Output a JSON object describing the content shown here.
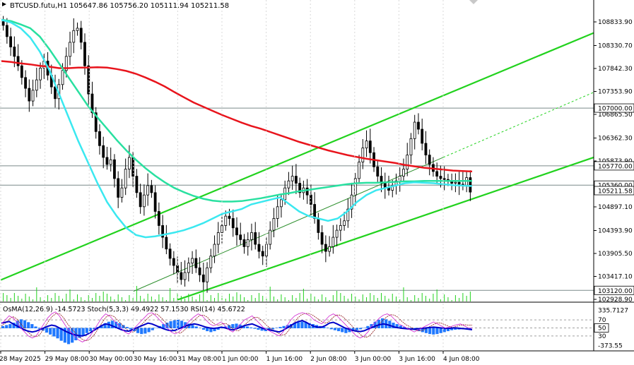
{
  "window": {
    "symbol_line": "BTCUSD.futu,H1  105647.86 105756.20 105111.94 105211.58",
    "indicator_line": "OsMA(12,26,9) -14.5723  Stoch(5,3,3) 49.4922 57.1530  RSI(14) 45.6722"
  },
  "colors": {
    "background": "#ffffff",
    "candles": "#000000",
    "ma_red": "#e8141c",
    "ma_green": "#29e0a0",
    "ma_cyan": "#3be8f0",
    "channel": "#22d21e",
    "level_line": "#7a8a8a",
    "osma": "#1f78ff",
    "stoch_main": "#0000c8",
    "stoch_signal": "#8c1414",
    "rsi": "#d020d0"
  },
  "chart_data": [
    {
      "type": "candlestick",
      "title": "BTCUSD.futu,H1",
      "ohlc_current": {
        "open": 105647.86,
        "high": 105756.2,
        "low": 105111.94,
        "close": 105211.58
      },
      "ylim": [
        102928.9,
        109300.0
      ],
      "y_ticks": [
        108833.9,
        108330.7,
        107842.3,
        107353.9,
        106865.5,
        106362.3,
        105873.9,
        105360.0,
        104897.1,
        104393.9,
        103905.5,
        103417.1,
        102928.9
      ],
      "x_ticks": [
        "28 May 2025",
        "29 May 08:00",
        "30 May 00:00",
        "30 May 16:00",
        "31 May 08:00",
        "1 Jun 00:00",
        "1 Jun 16:00",
        "2 Jun 08:00",
        "3 Jun 00:00",
        "3 Jun 16:00",
        "4 Jun 08:00"
      ],
      "levels": [
        {
          "label": "107000.00",
          "value": 107000.0
        },
        {
          "label": "105770.00",
          "value": 105770.0
        },
        {
          "label": "105360.00",
          "value": 105360.0
        },
        {
          "label": "103120.00",
          "value": 103120.0
        }
      ],
      "current_price_label": "105211.58",
      "close_series": [
        108760,
        108520,
        108300,
        108100,
        107900,
        107650,
        107420,
        107150,
        107380,
        107600,
        107850,
        108000,
        107700,
        107450,
        107200,
        107500,
        107800,
        108100,
        108400,
        108650,
        108700,
        108400,
        107900,
        107300,
        106900,
        106500,
        106200,
        105950,
        105800,
        105900,
        105500,
        105100,
        105300,
        105700,
        105950,
        105550,
        105200,
        104900,
        105150,
        105350,
        105200,
        104800,
        104500,
        104250,
        104000,
        103800,
        103650,
        103500,
        103350,
        103500,
        103700,
        103800,
        103600,
        103450,
        103300,
        103600,
        103850,
        104100,
        104350,
        104500,
        104700,
        104650,
        104450,
        104300,
        104200,
        104050,
        104200,
        104350,
        104100,
        103950,
        103850,
        104100,
        104400,
        104650,
        104900,
        105050,
        105300,
        105450,
        105550,
        105400,
        105200,
        105300,
        105150,
        104950,
        104650,
        104350,
        104100,
        103950,
        104050,
        104250,
        104400,
        104500,
        104600,
        104850,
        105150,
        105500,
        105850,
        106150,
        106300,
        106050,
        105750,
        105550,
        105400,
        105300,
        105250,
        105350,
        105450,
        105550,
        105700,
        106000,
        106350,
        106700,
        106550,
        106250,
        106000,
        105800,
        105650,
        105550,
        105500,
        105480,
        105450,
        105400,
        105420,
        105380,
        105360,
        105520,
        105211.58
      ],
      "series": [
        {
          "values": [
            108000,
            107980,
            107950,
            107930,
            107900,
            107880,
            107850,
            107850,
            107860,
            107860,
            107870,
            107860,
            107830,
            107790,
            107730,
            107650,
            107560,
            107460,
            107340,
            107230,
            107120,
            107030,
            106940,
            106850,
            106770,
            106690,
            106620,
            106560,
            106490,
            106420,
            106350,
            106280,
            106220,
            106160,
            106100,
            106050,
            106000,
            105960,
            105920,
            105890,
            105860,
            105830,
            105790,
            105760,
            105730,
            105710,
            105690,
            105670,
            105660,
            105650
          ]
        },
        {
          "values": [
            108880,
            108850,
            108780,
            108700,
            108520,
            108250,
            107950,
            107650,
            107350,
            107050,
            106800,
            106560,
            106320,
            106100,
            105900,
            105720,
            105560,
            105420,
            105300,
            105210,
            105130,
            105070,
            105030,
            105010,
            105010,
            105020,
            105050,
            105080,
            105120,
            105160,
            105190,
            105230,
            105260,
            105290,
            105320,
            105350,
            105380,
            105400,
            105410,
            105410,
            105420,
            105430,
            105440,
            105440,
            105450,
            105450,
            105450,
            105450,
            105450,
            105450
          ]
        },
        {
          "values": [
            108880,
            108820,
            108700,
            108500,
            108200,
            107800,
            107300,
            106800,
            106300,
            105850,
            105400,
            105000,
            104700,
            104450,
            104300,
            104250,
            104270,
            104310,
            104350,
            104400,
            104470,
            104550,
            104650,
            104750,
            104800,
            104850,
            104950,
            105000,
            105050,
            105100,
            104950,
            104800,
            104700,
            104650,
            104600,
            104650,
            104800,
            105000,
            105150,
            105250,
            105300,
            105350,
            105400,
            105420,
            105410,
            105400,
            105380,
            105360,
            105350,
            105340
          ]
        }
      ],
      "channel": {
        "upper": [
          {
            "x": "28 May 2025",
            "y": 103340
          },
          {
            "x": "end",
            "y": 108600
          }
        ],
        "middle": [
          {
            "x": "30 May 16:00",
            "y": 103100
          },
          {
            "x": "4 Jun 08:00",
            "y": 105950
          }
        ],
        "lower": [
          {
            "x": "31 May 08:00",
            "y": 102920
          },
          {
            "x": "end",
            "y": 105950
          }
        ]
      }
    },
    {
      "type": "oscillator",
      "title": "OsMA(12,26,9) -14.5723  Stoch(5,3,3) 49.4922 57.1530  RSI(14) 45.6722",
      "y_ticks": [
        "335.7127",
        "70",
        "50",
        "30",
        "-373.55"
      ],
      "levels": [
        {
          "label": "50",
          "value": 50
        }
      ],
      "osma_last": -14.5723,
      "stoch_main_last": 49.4922,
      "stoch_signal_last": 57.153,
      "rsi_last": 45.6722,
      "osma": [
        40,
        60,
        80,
        110,
        150,
        180,
        160,
        120,
        80,
        30,
        -10,
        -50,
        -90,
        -130,
        -170,
        -210,
        -260,
        -300,
        -330,
        -300,
        -250,
        -200,
        -150,
        -100,
        -60,
        -20,
        20,
        60,
        100,
        130,
        150,
        130,
        100,
        60,
        20,
        -20,
        -60,
        -100,
        -120,
        -110,
        -80,
        -40,
        0,
        40,
        80,
        110,
        140,
        160,
        170,
        150,
        120,
        90,
        60,
        30,
        0,
        -30,
        -60,
        -80,
        -60,
        -30,
        0,
        30,
        60,
        80,
        90,
        70,
        50,
        30,
        10,
        -10,
        -30,
        -50,
        -60,
        -40,
        -20,
        0,
        20,
        40,
        60,
        80,
        100,
        120,
        130,
        120,
        100,
        80,
        60,
        40,
        20,
        0,
        -20,
        -40,
        -60,
        -80,
        -100,
        -80,
        -60,
        -40,
        -20,
        0,
        40,
        80,
        130,
        170,
        200,
        180,
        150,
        110,
        80,
        50,
        20,
        0,
        -20,
        -40,
        -60,
        -80,
        -100,
        -120,
        -130,
        -120,
        -100,
        -80,
        -60,
        -40,
        -30,
        -25,
        -20,
        -15,
        -14.5723
      ],
      "stoch_main": [
        60,
        70,
        80,
        75,
        65,
        50,
        40,
        30,
        25,
        30,
        45,
        60,
        75,
        85,
        90,
        80,
        65,
        50,
        40,
        30,
        20,
        15,
        20,
        30,
        45,
        60,
        75,
        85,
        80,
        70,
        60,
        50,
        40,
        35,
        45,
        55,
        65,
        75,
        85,
        88,
        80,
        70,
        60,
        50,
        40,
        35,
        40,
        50,
        60,
        70,
        78,
        85,
        80,
        70,
        60,
        55,
        60,
        65,
        55,
        45,
        40,
        50,
        60,
        70,
        75,
        80,
        70,
        60,
        50,
        45,
        40,
        35,
        30,
        40,
        55,
        70,
        80,
        85,
        88,
        85,
        80,
        70,
        65,
        60,
        70,
        80,
        85,
        80,
        70,
        60,
        50,
        40,
        30,
        25,
        30,
        40,
        55,
        65,
        75,
        82,
        85,
        80,
        70,
        60,
        55,
        50,
        45,
        40,
        45,
        50,
        55,
        60,
        65,
        60,
        55,
        50,
        52,
        55,
        58,
        60,
        55,
        50,
        49.4922
      ],
      "stoch_signal": [
        55,
        62,
        72,
        78,
        72,
        60,
        48,
        38,
        30,
        28,
        35,
        50,
        65,
        78,
        86,
        85,
        75,
        60,
        48,
        38,
        28,
        20,
        18,
        24,
        35,
        50,
        65,
        78,
        82,
        78,
        68,
        58,
        48,
        40,
        40,
        48,
        58,
        68,
        78,
        85,
        84,
        76,
        66,
        56,
        46,
        38,
        37,
        44,
        54,
        64,
        73,
        81,
        82,
        76,
        66,
        58,
        57,
        61,
        60,
        52,
        44,
        43,
        52,
        62,
        70,
        76,
        76,
        68,
        58,
        50,
        44,
        38,
        32,
        34,
        46,
        60,
        73,
        82,
        86,
        86,
        82,
        75,
        68,
        62,
        64,
        74,
        82,
        82,
        76,
        66,
        56,
        46,
        36,
        28,
        27,
        34,
        46,
        58,
        68,
        77,
        83,
        82,
        76,
        66,
        58,
        53,
        48,
        43,
        43,
        47,
        53,
        58,
        63,
        62,
        58,
        54,
        51,
        54,
        57,
        58,
        57,
        57.153
      ],
      "rsi": [
        62,
        64,
        66,
        60,
        55,
        50,
        45,
        42,
        40,
        42,
        46,
        50,
        54,
        57,
        55,
        50,
        45,
        40,
        36,
        33,
        31,
        30,
        33,
        38,
        44,
        50,
        56,
        60,
        58,
        54,
        50,
        46,
        43,
        42,
        46,
        50,
        54,
        58,
        62,
        60,
        56,
        52,
        48,
        45,
        43,
        44,
        48,
        52,
        56,
        58,
        60,
        58,
        55,
        52,
        50,
        49,
        50,
        52,
        50,
        47,
        45,
        48,
        52,
        56,
        58,
        60,
        56,
        52,
        48,
        46,
        44,
        42,
        40,
        44,
        50,
        56,
        62,
        66,
        68,
        64,
        58,
        54,
        52,
        52,
        56,
        62,
        64,
        60,
        55,
        50,
        47,
        44,
        42,
        41,
        43,
        47,
        51,
        55,
        58,
        60,
        58,
        55,
        52,
        50,
        49,
        48,
        47,
        47,
        48,
        49,
        50,
        51,
        52,
        51,
        50,
        49,
        49,
        50,
        50,
        49,
        48,
        47,
        45.6722
      ]
    }
  ]
}
